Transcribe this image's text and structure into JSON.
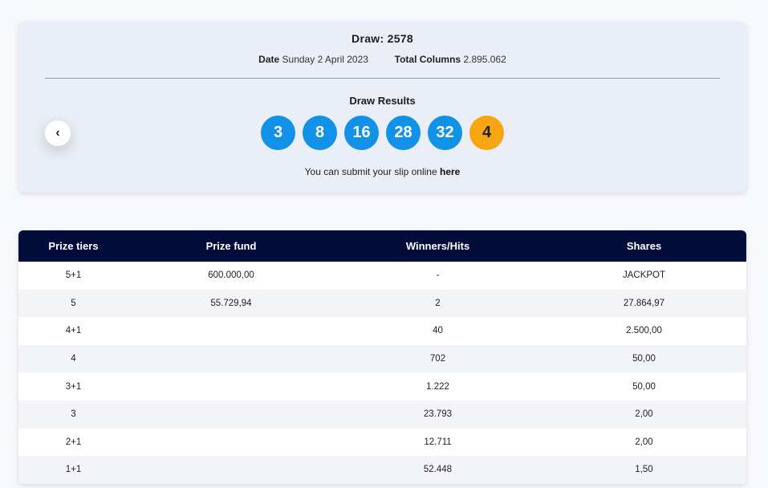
{
  "draw": {
    "title": "Draw: 2578",
    "date_label": "Date",
    "date_value": "Sunday 2 April 2023",
    "columns_label": "Total Columns",
    "columns_value": "2.895.062"
  },
  "results": {
    "title": "Draw Results",
    "numbers": [
      "3",
      "8",
      "16",
      "28",
      "32"
    ],
    "bonus": "4",
    "submit_text": "You can submit your slip online ",
    "submit_link": "here",
    "prev_icon": "‹"
  },
  "colors": {
    "ball": "#1192e8",
    "bonus_ball": "#f7a612",
    "header_bg": "#020d3b"
  },
  "table": {
    "headers": [
      "Prize tiers",
      "Prize fund",
      "Winners/Hits",
      "Shares"
    ],
    "rows": [
      [
        "5+1",
        "600.000,00",
        "-",
        "JACKPOT"
      ],
      [
        "5",
        "55.729,94",
        "2",
        "27.864,97"
      ],
      [
        "4+1",
        "",
        "40",
        "2.500,00"
      ],
      [
        "4",
        "",
        "702",
        "50,00"
      ],
      [
        "3+1",
        "",
        "1.222",
        "50,00"
      ],
      [
        "3",
        "",
        "23.793",
        "2,00"
      ],
      [
        "2+1",
        "",
        "12.711",
        "2,00"
      ],
      [
        "1+1",
        "",
        "52.448",
        "1,50"
      ]
    ]
  }
}
